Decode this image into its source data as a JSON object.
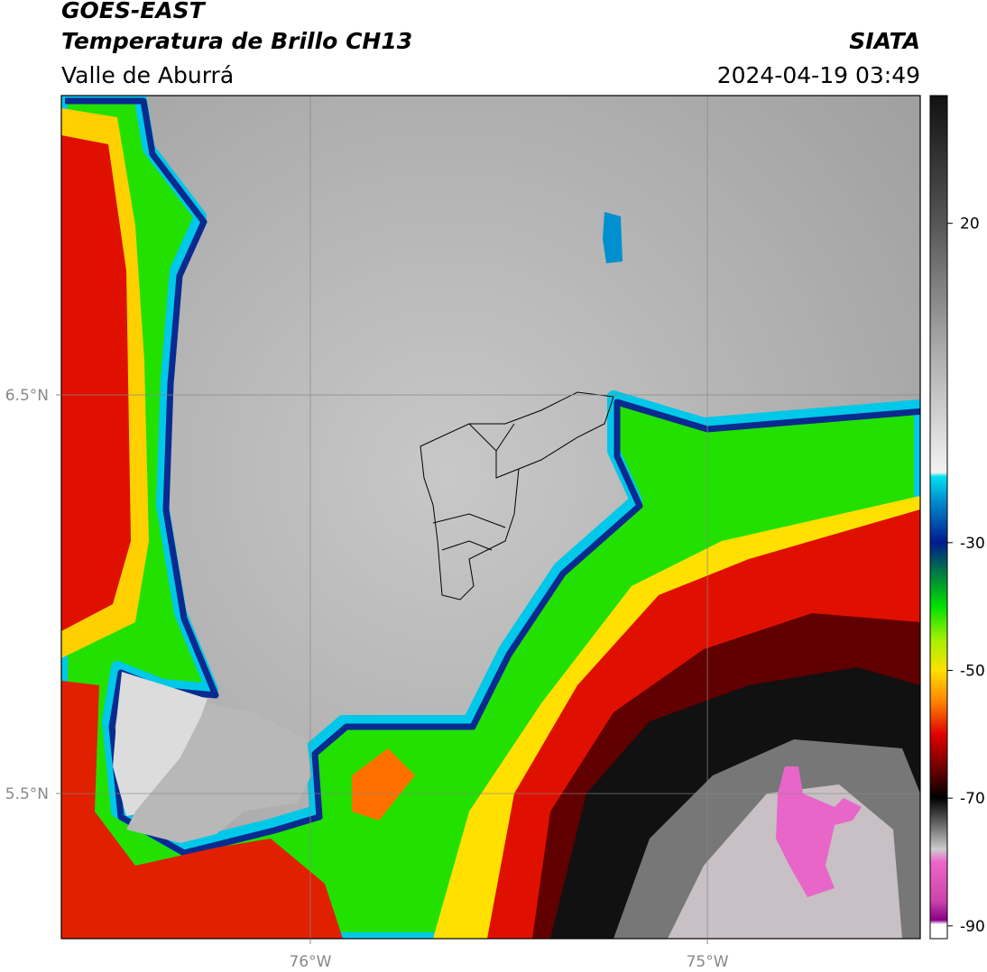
{
  "header": {
    "title": "GOES-EAST",
    "subtitle": "Temperatura de Brillo CH13",
    "region": "Valle de Aburrá",
    "source": "SIATA",
    "datetime": "2024-04-19 03:49"
  },
  "map": {
    "xlim": [
      -76.627,
      -74.464
    ],
    "ylim": [
      5.136,
      7.251
    ],
    "xticks": [
      {
        "value": -76,
        "label": "76°W"
      },
      {
        "value": -75,
        "label": "75°W"
      }
    ],
    "yticks": [
      {
        "value": 6.5,
        "label": "6.5°N"
      },
      {
        "value": 5.5,
        "label": "5.5°N"
      }
    ],
    "grid": true
  },
  "colorbar": {
    "lim": [
      -92,
      40
    ],
    "ticks": [
      20,
      -30,
      -50,
      -70,
      -90
    ]
  }
}
